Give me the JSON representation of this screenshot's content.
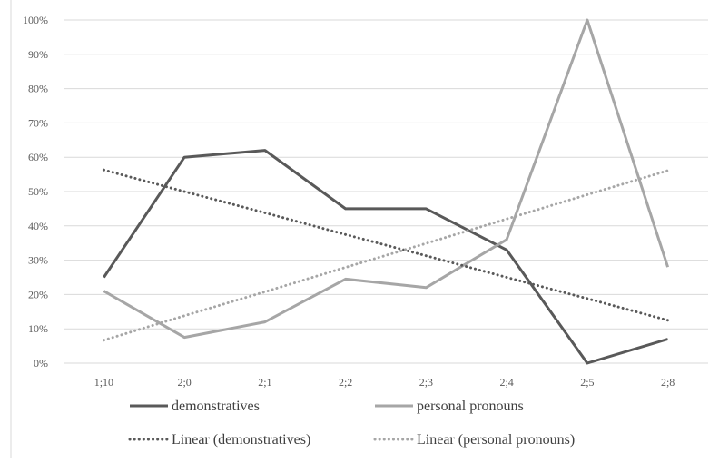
{
  "chart_data": {
    "type": "line",
    "categories": [
      "1;10",
      "2;0",
      "2;1",
      "2;2",
      "2;3",
      "2;4",
      "2;5",
      "2;8"
    ],
    "y_tick_labels": [
      "0%",
      "10%",
      "20%",
      "30%",
      "40%",
      "50%",
      "60%",
      "70%",
      "80%",
      "90%",
      "100%"
    ],
    "ylim": [
      0,
      100
    ],
    "grid": true,
    "legend_position": "bottom",
    "series": [
      {
        "name": "demonstratives",
        "color": "#595959",
        "style": "solid",
        "values": [
          25,
          60,
          62,
          45,
          45,
          33,
          0,
          7
        ]
      },
      {
        "name": "personal pronouns",
        "color": "#a6a6a6",
        "style": "solid",
        "values": [
          21,
          7.5,
          12,
          24.5,
          22,
          36,
          100,
          28
        ]
      },
      {
        "name": "Linear (demonstratives)",
        "color": "#595959",
        "style": "dotted",
        "values": [
          56.3,
          50.0,
          43.8,
          37.5,
          31.3,
          25.0,
          18.8,
          12.5
        ]
      },
      {
        "name": "Linear (personal pronouns)",
        "color": "#a6a6a6",
        "style": "dotted",
        "values": [
          6.7,
          13.8,
          20.8,
          27.9,
          34.9,
          42.0,
          49.1,
          56.1
        ]
      }
    ]
  }
}
